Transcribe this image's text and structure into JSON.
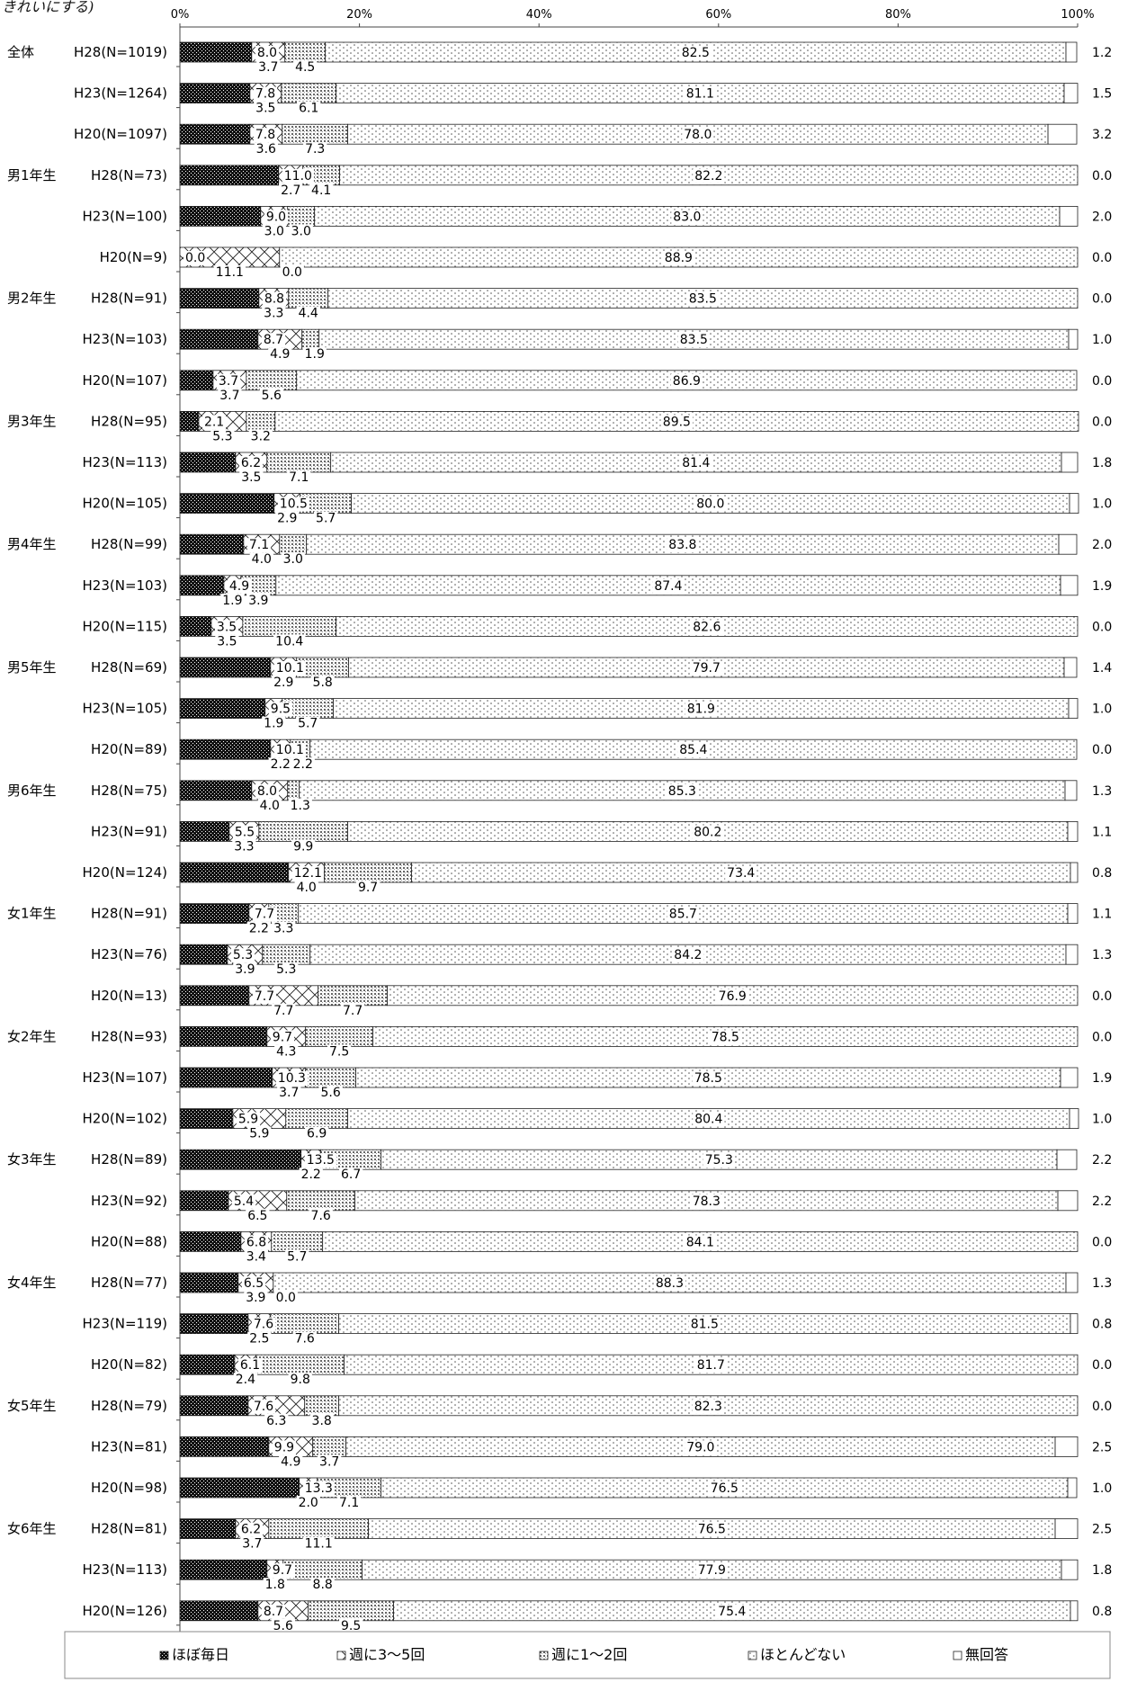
{
  "header_note": "きれいにする)",
  "chart_data": {
    "type": "stacked-bar-horizontal",
    "xlim": [
      0,
      100
    ],
    "x_ticks": [
      "0%",
      "20%",
      "40%",
      "60%",
      "80%",
      "100%"
    ],
    "legend": [
      "ほぼ毎日",
      "週に3～5回",
      "週に1～2回",
      "ほとんどない",
      "無回答"
    ],
    "legend_placement": "bottom",
    "series_colors": {
      "ほぼ毎日": "#111111",
      "週に3～5回": "#ffffff",
      "週に1～2回": "#d8d8d8",
      "ほとんどない": "#f6f6f6",
      "無回答": "#ffffff"
    },
    "rows": [
      {
        "group": "全体",
        "label": "H28(N=1019)",
        "values": [
          8.0,
          3.7,
          4.5,
          82.5,
          1.2
        ]
      },
      {
        "group": "",
        "label": "H23(N=1264)",
        "values": [
          7.8,
          3.5,
          6.1,
          81.1,
          1.5
        ]
      },
      {
        "group": "",
        "label": "H20(N=1097)",
        "values": [
          7.8,
          3.6,
          7.3,
          78.0,
          3.2
        ]
      },
      {
        "group": "男1年生",
        "label": "H28(N=73)",
        "values": [
          11.0,
          2.7,
          4.1,
          82.2,
          0.0
        ]
      },
      {
        "group": "",
        "label": "H23(N=100)",
        "values": [
          9.0,
          3.0,
          3.0,
          83.0,
          2.0
        ]
      },
      {
        "group": "",
        "label": "H20(N=9)",
        "values": [
          0.0,
          11.1,
          0.0,
          88.9,
          0.0
        ]
      },
      {
        "group": "男2年生",
        "label": "H28(N=91)",
        "values": [
          8.8,
          3.3,
          4.4,
          83.5,
          0.0
        ]
      },
      {
        "group": "",
        "label": "H23(N=103)",
        "values": [
          8.7,
          4.9,
          1.9,
          83.5,
          1.0
        ]
      },
      {
        "group": "",
        "label": "H20(N=107)",
        "values": [
          3.7,
          3.7,
          5.6,
          86.9,
          0.0
        ]
      },
      {
        "group": "男3年生",
        "label": "H28(N=95)",
        "values": [
          2.1,
          5.3,
          3.2,
          89.5,
          0.0
        ]
      },
      {
        "group": "",
        "label": "H23(N=113)",
        "values": [
          6.2,
          3.5,
          7.1,
          81.4,
          1.8
        ]
      },
      {
        "group": "",
        "label": "H20(N=105)",
        "values": [
          10.5,
          2.9,
          5.7,
          80.0,
          1.0
        ]
      },
      {
        "group": "男4年生",
        "label": "H28(N=99)",
        "values": [
          7.1,
          4.0,
          3.0,
          83.8,
          2.0
        ]
      },
      {
        "group": "",
        "label": "H23(N=103)",
        "values": [
          4.9,
          1.9,
          3.9,
          87.4,
          1.9
        ]
      },
      {
        "group": "",
        "label": "H20(N=115)",
        "values": [
          3.5,
          3.5,
          10.4,
          82.6,
          0.0
        ]
      },
      {
        "group": "男5年生",
        "label": "H28(N=69)",
        "values": [
          10.1,
          2.9,
          5.8,
          79.7,
          1.4
        ]
      },
      {
        "group": "",
        "label": "H23(N=105)",
        "values": [
          9.5,
          1.9,
          5.7,
          81.9,
          1.0
        ]
      },
      {
        "group": "",
        "label": "H20(N=89)",
        "values": [
          10.1,
          2.2,
          2.2,
          85.4,
          0.0
        ]
      },
      {
        "group": "男6年生",
        "label": "H28(N=75)",
        "values": [
          8.0,
          4.0,
          1.3,
          85.3,
          1.3
        ]
      },
      {
        "group": "",
        "label": "H23(N=91)",
        "values": [
          5.5,
          3.3,
          9.9,
          80.2,
          1.1
        ]
      },
      {
        "group": "",
        "label": "H20(N=124)",
        "values": [
          12.1,
          4.0,
          9.7,
          73.4,
          0.8
        ]
      },
      {
        "group": "女1年生",
        "label": "H28(N=91)",
        "values": [
          7.7,
          2.2,
          3.3,
          85.7,
          1.1
        ]
      },
      {
        "group": "",
        "label": "H23(N=76)",
        "values": [
          5.3,
          3.9,
          5.3,
          84.2,
          1.3
        ]
      },
      {
        "group": "",
        "label": "H20(N=13)",
        "values": [
          7.7,
          7.7,
          7.7,
          76.9,
          0.0
        ]
      },
      {
        "group": "女2年生",
        "label": "H28(N=93)",
        "values": [
          9.7,
          4.3,
          7.5,
          78.5,
          0.0
        ]
      },
      {
        "group": "",
        "label": "H23(N=107)",
        "values": [
          10.3,
          3.7,
          5.6,
          78.5,
          1.9
        ]
      },
      {
        "group": "",
        "label": "H20(N=102)",
        "values": [
          5.9,
          5.9,
          6.9,
          80.4,
          1.0
        ]
      },
      {
        "group": "女3年生",
        "label": "H28(N=89)",
        "values": [
          13.5,
          2.2,
          6.7,
          75.3,
          2.2
        ]
      },
      {
        "group": "",
        "label": "H23(N=92)",
        "values": [
          5.4,
          6.5,
          7.6,
          78.3,
          2.2
        ]
      },
      {
        "group": "",
        "label": "H20(N=88)",
        "values": [
          6.8,
          3.4,
          5.7,
          84.1,
          0.0
        ]
      },
      {
        "group": "女4年生",
        "label": "H28(N=77)",
        "values": [
          6.5,
          3.9,
          0.0,
          88.3,
          1.3
        ]
      },
      {
        "group": "",
        "label": "H23(N=119)",
        "values": [
          7.6,
          2.5,
          7.6,
          81.5,
          0.8
        ]
      },
      {
        "group": "",
        "label": "H20(N=82)",
        "values": [
          6.1,
          2.4,
          9.8,
          81.7,
          0.0
        ]
      },
      {
        "group": "女5年生",
        "label": "H28(N=79)",
        "values": [
          7.6,
          6.3,
          3.8,
          82.3,
          0.0
        ]
      },
      {
        "group": "",
        "label": "H23(N=81)",
        "values": [
          9.9,
          4.9,
          3.7,
          79.0,
          2.5
        ]
      },
      {
        "group": "",
        "label": "H20(N=98)",
        "values": [
          13.3,
          2.0,
          7.1,
          76.5,
          1.0
        ]
      },
      {
        "group": "女6年生",
        "label": "H28(N=81)",
        "values": [
          6.2,
          3.7,
          11.1,
          76.5,
          2.5
        ]
      },
      {
        "group": "",
        "label": "H23(N=113)",
        "values": [
          9.7,
          1.8,
          8.8,
          77.9,
          1.8
        ]
      },
      {
        "group": "",
        "label": "H20(N=126)",
        "values": [
          8.7,
          5.6,
          9.5,
          75.4,
          0.8
        ]
      }
    ]
  }
}
